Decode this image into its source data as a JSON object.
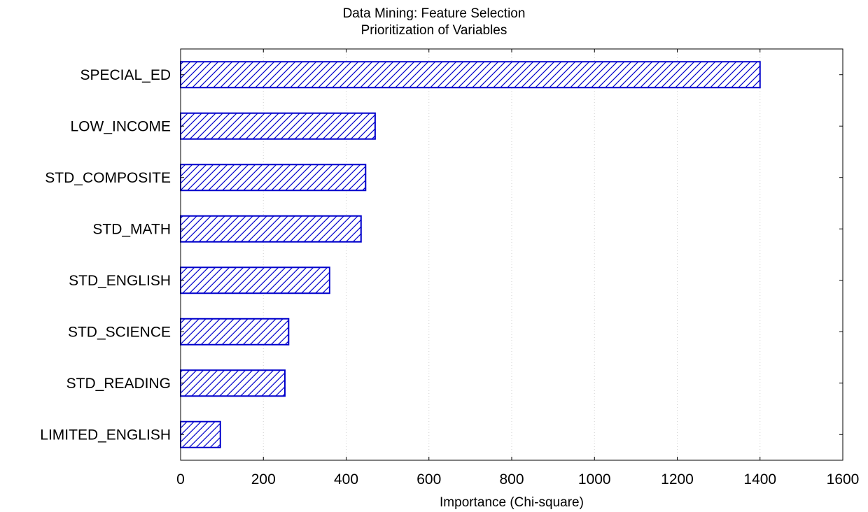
{
  "chart_data": {
    "type": "bar",
    "orientation": "horizontal",
    "title": "Data Mining: Feature Selection",
    "subtitle": "Prioritization of Variables",
    "xlabel": "Importance (Chi-square)",
    "ylabel": "",
    "categories": [
      "SPECIAL_ED",
      "LOW_INCOME",
      "STD_COMPOSITE",
      "STD_MATH",
      "STD_ENGLISH",
      "STD_SCIENCE",
      "STD_READING",
      "LIMITED_ENGLISH"
    ],
    "values": [
      1400,
      470,
      447,
      436,
      360,
      261,
      252,
      96
    ],
    "xlim": [
      0,
      1600
    ],
    "xticks": [
      "0",
      "200",
      "400",
      "600",
      "800",
      "1000",
      "1200",
      "1400",
      "1600"
    ],
    "grid": true,
    "bar_color": "#0000cc",
    "bar_fill": "diagonal-hatch"
  }
}
